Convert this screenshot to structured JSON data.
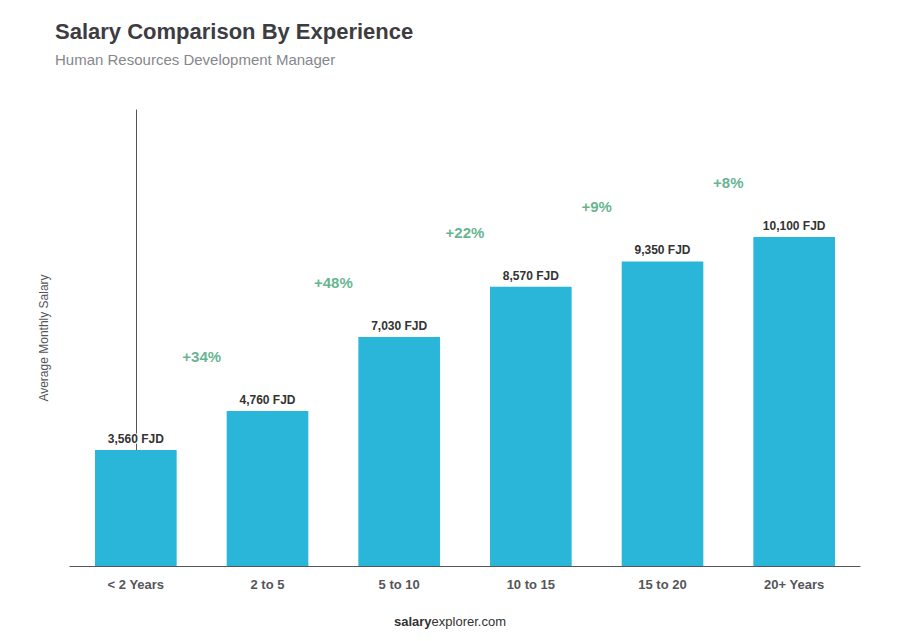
{
  "chart_data": {
    "type": "bar",
    "title": "Salary Comparison By Experience",
    "subtitle": "Human Resources Development Manager",
    "categories": [
      "< 2 Years",
      "2 to 5",
      "5 to 10",
      "10 to 15",
      "15 to 20",
      "20+ Years"
    ],
    "values": [
      3560,
      4760,
      7030,
      8570,
      9350,
      10100
    ],
    "value_labels": [
      "3,560 FJD",
      "4,760 FJD",
      "7,030 FJD",
      "8,570 FJD",
      "9,350 FJD",
      "10,100 FJD"
    ],
    "data_labels": true,
    "annotations": [
      "+34%",
      "+48%",
      "+22%",
      "+9%",
      "+8%"
    ],
    "ylabel": "Average Monthly Salary",
    "footer": [
      "salary",
      "explorer.com"
    ],
    "color": "#29b6d8",
    "ylim": [
      0,
      14000
    ],
    "tick_labels": "x",
    "grid": false
  }
}
